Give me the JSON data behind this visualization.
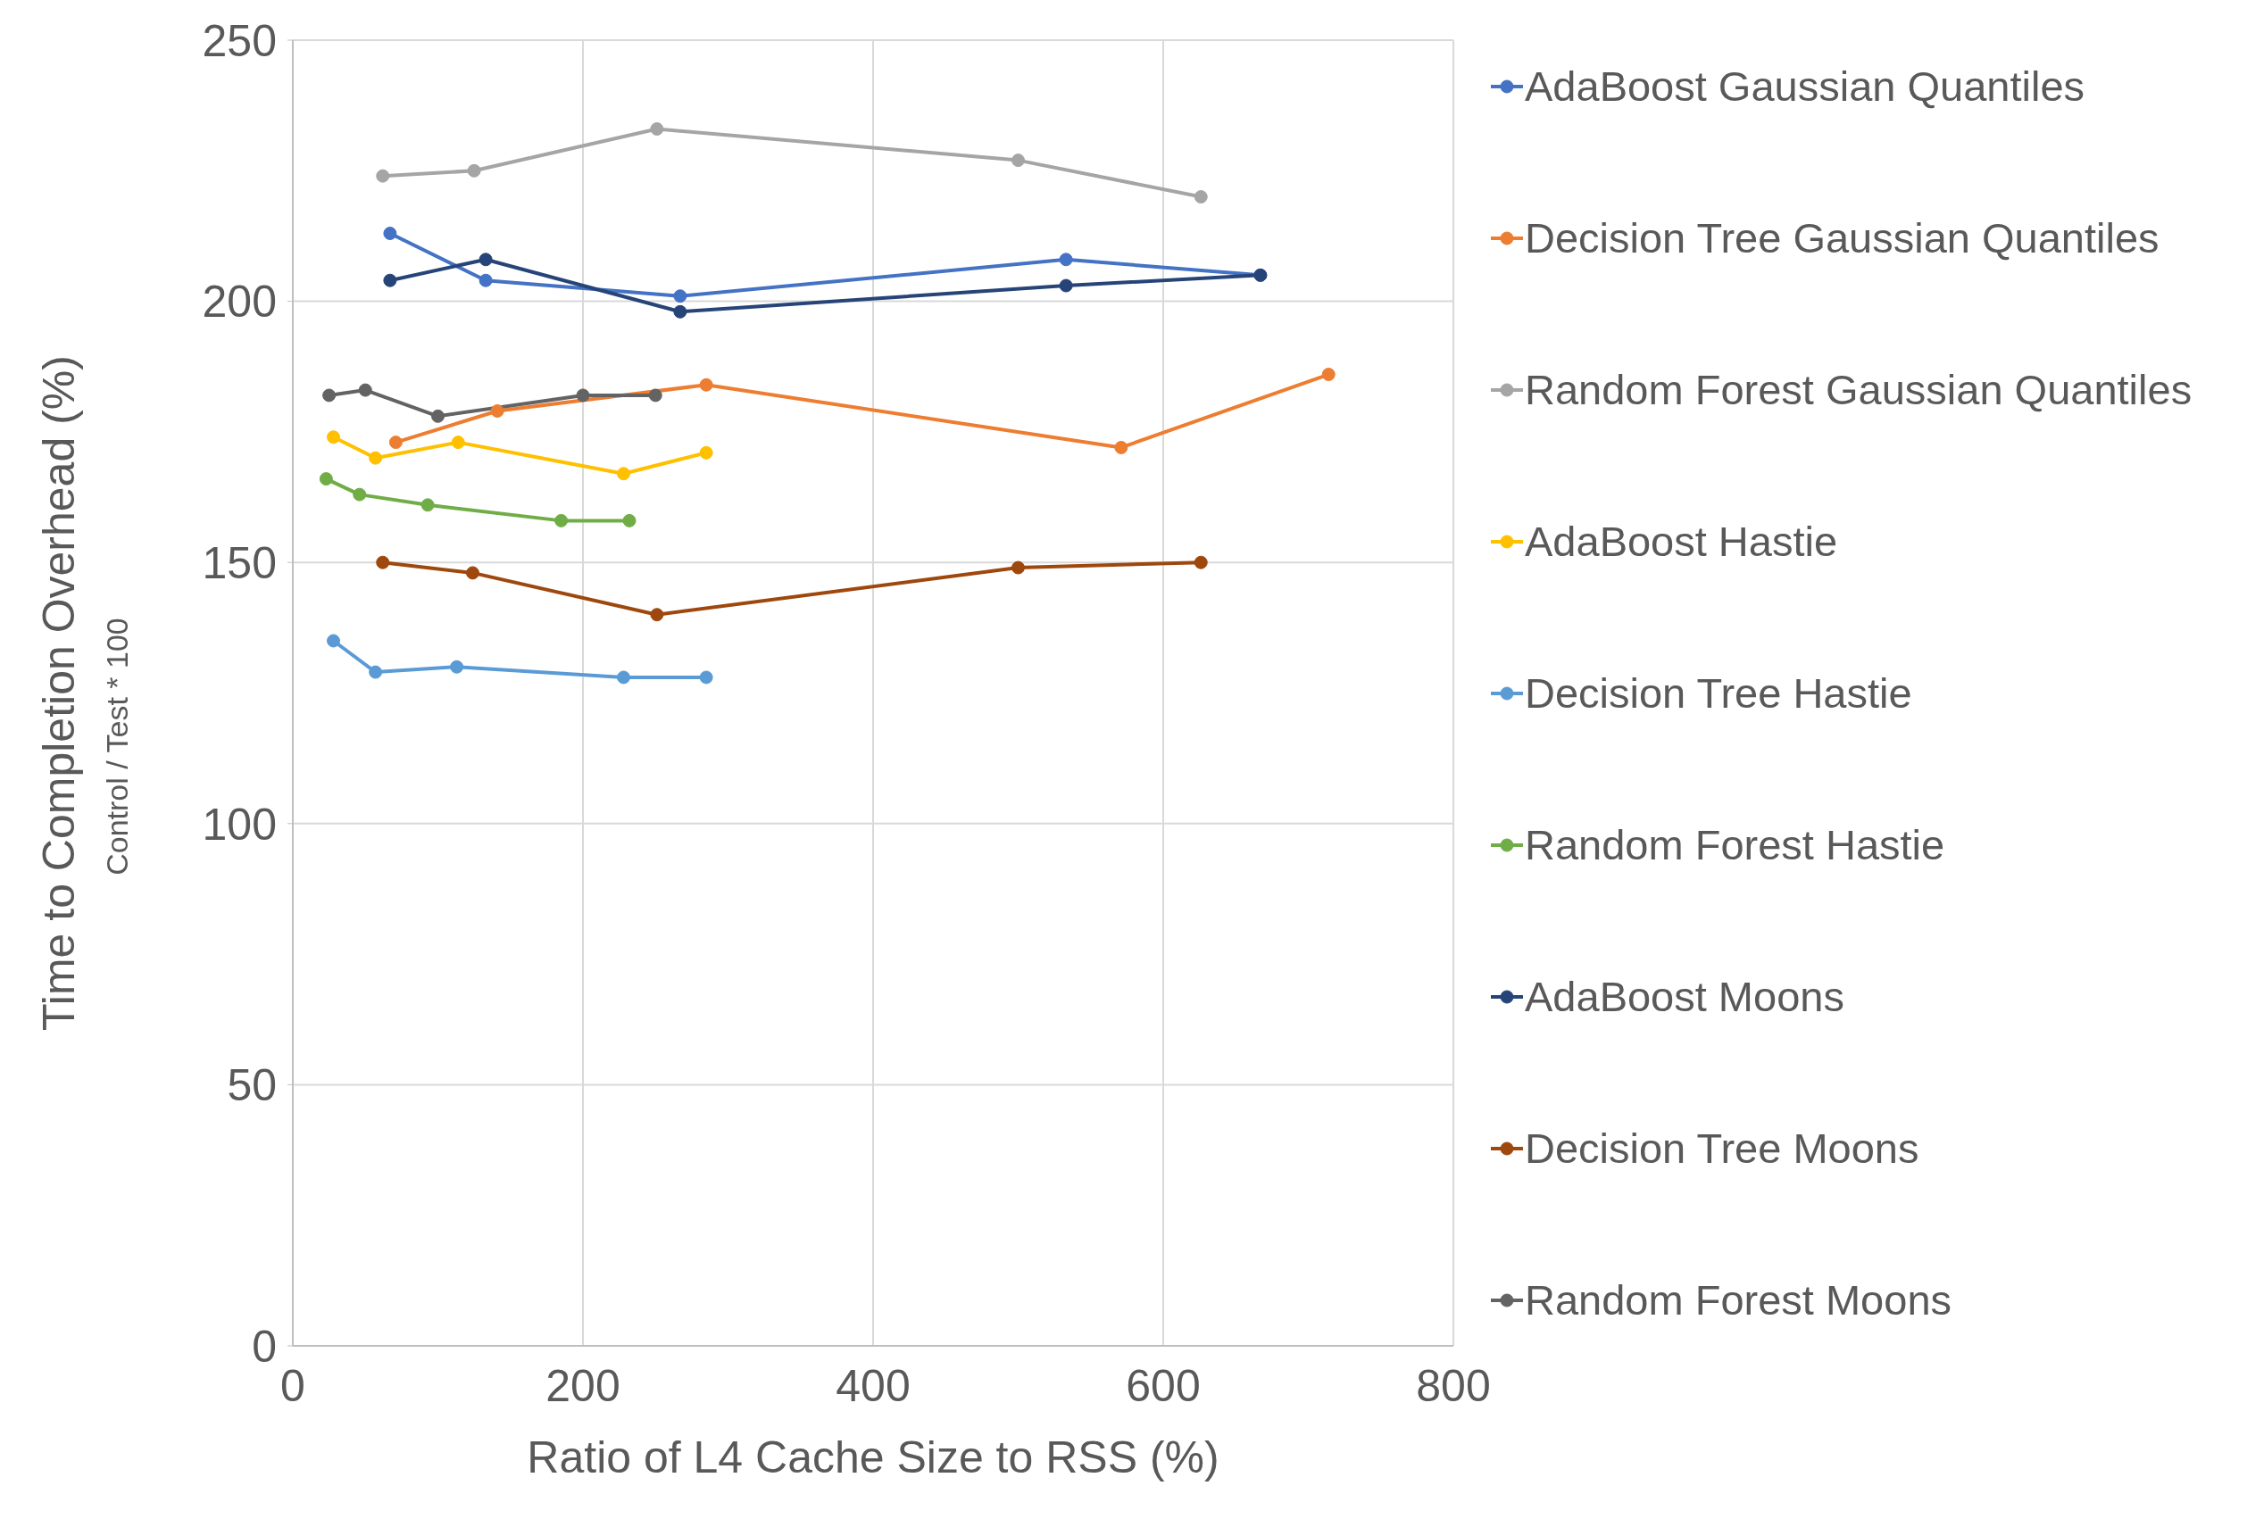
{
  "chart_data": {
    "type": "line",
    "xlabel": "Ratio of L4 Cache Size to RSS (%)",
    "ylabel": "Time to Completion Overhead (%)",
    "annotations": [
      "Control / Test  * 100"
    ],
    "xlim": [
      0,
      800
    ],
    "xticks": [
      0,
      200,
      400,
      600,
      800
    ],
    "ylim": [
      0,
      250
    ],
    "yticks": [
      0,
      50,
      100,
      150,
      200,
      250
    ],
    "grid": true,
    "legend": "right",
    "marker": "circle",
    "line_style": "solid",
    "series": [
      {
        "name": "AdaBoost Gaussian Quantiles",
        "color": "#4472c4",
        "x": [
          67,
          133,
          267,
          533,
          667
        ],
        "values": [
          213,
          204,
          201,
          208,
          205
        ]
      },
      {
        "name": "Decision Tree Gaussian Quantiles",
        "color": "#ed7d31",
        "x": [
          71,
          141,
          285,
          571,
          714
        ],
        "values": [
          173,
          179,
          184,
          172,
          186
        ]
      },
      {
        "name": "Random Forest Gaussian Quantiles",
        "color": "#a5a5a5",
        "x": [
          62,
          125,
          251,
          500,
          626
        ],
        "values": [
          224,
          225,
          233,
          227,
          220
        ]
      },
      {
        "name": "AdaBoost Hastie",
        "color": "#ffc000",
        "x": [
          28,
          57,
          114,
          228,
          285
        ],
        "values": [
          174,
          170,
          173,
          167,
          171
        ]
      },
      {
        "name": "Decision Tree Hastie",
        "color": "#5b9bd5",
        "x": [
          28,
          57,
          113,
          228,
          285
        ],
        "values": [
          135,
          129,
          130,
          128,
          128
        ]
      },
      {
        "name": "Random Forest Hastie",
        "color": "#70ad47",
        "x": [
          23,
          46,
          93,
          185,
          232
        ],
        "values": [
          166,
          163,
          161,
          158,
          158
        ]
      },
      {
        "name": "AdaBoost Moons",
        "color": "#264478",
        "x": [
          67,
          133,
          267,
          533,
          667
        ],
        "values": [
          204,
          208,
          198,
          203,
          205
        ]
      },
      {
        "name": "Decision Tree Moons",
        "color": "#9e480e",
        "x": [
          62,
          124,
          251,
          500,
          626
        ],
        "values": [
          150,
          148,
          140,
          149,
          150
        ]
      },
      {
        "name": "Random Forest Moons",
        "color": "#636363",
        "x": [
          25,
          50,
          100,
          200,
          250
        ],
        "values": [
          182,
          183,
          178,
          182,
          182
        ]
      }
    ]
  }
}
